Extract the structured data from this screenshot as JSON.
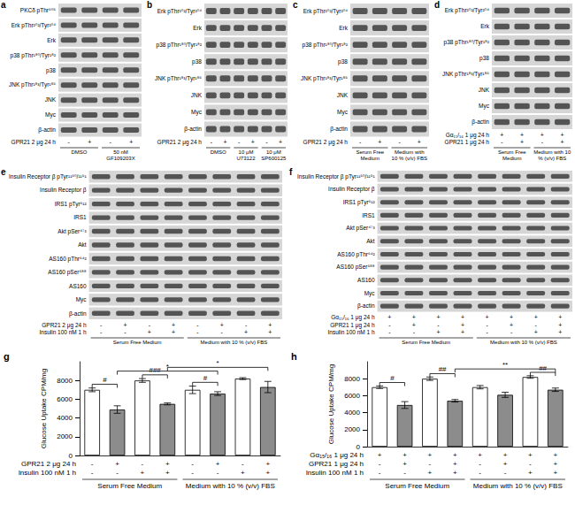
{
  "panels": [
    {
      "letter": "a",
      "rows": [
        "PKCδ pThr⁵⁰⁵",
        "Erk pThr²⁰²/Tyr²⁰⁴",
        "Erk",
        "p38 pThr¹⁸⁰/Tyr¹⁸²",
        "p38",
        "JNK pThr¹⁸³/Tyr¹⁸⁵",
        "JNK",
        "Myc",
        "β-actin"
      ],
      "conditions": [
        {
          "label": "GPR21 2 μg 24 h",
          "signs": [
            "-",
            "+",
            "-",
            "+"
          ]
        }
      ],
      "groups": [
        "DMSO",
        "50 nM GF109203X"
      ]
    },
    {
      "letter": "b",
      "rows": [
        "Erk pThr²⁰²/Tyr²⁰⁴",
        "Erk",
        "p38 pThr¹⁸⁰/Tyr¹⁸²",
        "p38",
        "JNK pThr¹⁸³/Tyr¹⁸⁵",
        "JNK",
        "Myc",
        "β-actin"
      ],
      "conditions": [
        {
          "label": "GPR21 2 μg 24 h",
          "signs": [
            "-",
            "+",
            "-",
            "+",
            "-",
            "+"
          ]
        }
      ],
      "groups": [
        "DMSO",
        "10 μM U73122",
        "10 μM SP600125"
      ]
    },
    {
      "letter": "c",
      "rows": [
        "Erk pThr²⁰²/Tyr²⁰⁴",
        "Erk",
        "p38 pThr¹⁸⁰/Tyr¹⁸²",
        "p38",
        "JNK pThr¹⁸³/Tyr¹⁸⁵",
        "JNK",
        "Myc",
        "β-actin"
      ],
      "conditions": [
        {
          "label": "GPR21 2 μg 24 h",
          "signs": [
            "-",
            "+",
            "-",
            "+"
          ]
        }
      ],
      "groups": [
        "Serum Free Medium",
        "Medium with 10 % (v/v) FBS"
      ]
    },
    {
      "letter": "d",
      "rows": [
        "Erk pThr²⁰²/Tyr²⁰⁴",
        "Erk",
        "p38 pThr¹⁸⁰/Tyr¹⁸²",
        "p38",
        "JNK pThr¹⁸³/Tyr¹⁸⁵",
        "JNK",
        "Myc",
        "β-actin"
      ],
      "conditions": [
        {
          "label": "Gα₁₅/₁₆ 1 μg 24 h",
          "signs": [
            "+",
            "+",
            "+",
            "+"
          ]
        },
        {
          "label": "GPR21 1 μg 24 h",
          "signs": [
            "-",
            "+",
            "-",
            "+"
          ]
        }
      ],
      "groups": [
        "Serum Free Medium",
        "Medium with 10 % (v/v) FBS"
      ]
    },
    {
      "letter": "e",
      "rows": [
        "Insulin Receptor β pTyr¹¹⁵⁰/¹¹⁵¹",
        "Insulin Receptor β",
        "IRS1 pTyr⁶¹²",
        "IRS1",
        "Akt pSer⁴⁷³",
        "Akt",
        "AS160 pThr⁶⁴²",
        "AS160 pSer⁵⁸⁸",
        "AS160",
        "Myc",
        "β-actin"
      ],
      "conditions": [
        {
          "label": "GPR21 2 μg 24 h",
          "signs": [
            "-",
            "+",
            "-",
            "+",
            "-",
            "+",
            "-",
            "+"
          ]
        },
        {
          "label": "Insulin 100 nM 1 h",
          "signs": [
            "-",
            "-",
            "+",
            "+",
            "-",
            "-",
            "+",
            "+"
          ]
        }
      ],
      "groups": [
        "Serum Free Medium",
        "Medium with 10 % (v/v) FBS"
      ]
    },
    {
      "letter": "f",
      "rows": [
        "Insulin Receptor β pTyr¹¹⁵⁰/¹¹⁵¹",
        "Insulin Receptor β",
        "IRS1 pTyr⁶¹²",
        "IRS1",
        "Akt pSer⁴⁷³",
        "Akt",
        "AS160 pThr⁶⁴²",
        "AS160 pSer⁵⁸⁸",
        "AS160",
        "Myc",
        "β-actin"
      ],
      "conditions": [
        {
          "label": "Gα₁₅/₁₆ 1 μg 24 h",
          "signs": [
            "+",
            "+",
            "+",
            "+",
            "+",
            "+",
            "+",
            "+"
          ]
        },
        {
          "label": "GPR21 1 μg 24 h",
          "signs": [
            "-",
            "+",
            "-",
            "+",
            "-",
            "+",
            "-",
            "+"
          ]
        },
        {
          "label": "Insulin 100 nM 1 h",
          "signs": [
            "-",
            "-",
            "+",
            "+",
            "-",
            "-",
            "+",
            "+"
          ]
        }
      ],
      "groups": [
        "Serum Free Medium",
        "Medium with 10 % (v/v) FBS"
      ]
    }
  ],
  "chart_data": [
    {
      "type": "bar",
      "letter": "g",
      "ylabel": "Glucose Uptake CPM/mg",
      "values": [
        7000,
        4900,
        8000,
        5500,
        7000,
        6600,
        8200,
        7300
      ],
      "errors": [
        200,
        400,
        200,
        100,
        400,
        200,
        100,
        600
      ],
      "colors": [
        "#ffffff",
        "#8c8c8c",
        "#ffffff",
        "#8c8c8c",
        "#ffffff",
        "#8c8c8c",
        "#ffffff",
        "#8c8c8c"
      ],
      "ylim": [
        0,
        10000
      ],
      "yticks": [
        0,
        2000,
        4000,
        6000,
        8000
      ],
      "grid": false,
      "conditions": [
        {
          "label": "GPR21 2 μg 24 h",
          "signs": [
            "-",
            "+",
            "-",
            "+",
            "-",
            "+",
            "-",
            "+"
          ]
        },
        {
          "label": "Insulin 100 nM 1 h",
          "signs": [
            "-",
            "-",
            "+",
            "+",
            "-",
            "-",
            "+",
            "+"
          ]
        }
      ],
      "groups": [
        "Serum Free Medium",
        "Medium with 10 % (v/v) FBS"
      ],
      "annotations": [
        {
          "from": 0,
          "to": 1,
          "text": "#"
        },
        {
          "from": 2,
          "to": 3,
          "text": "###"
        },
        {
          "from": 4,
          "to": 5,
          "text": "#"
        },
        {
          "from": 1,
          "to": 5,
          "text": "*"
        },
        {
          "from": 3,
          "to": 7,
          "text": "*"
        }
      ]
    },
    {
      "type": "bar",
      "letter": "h",
      "ylabel": "Glucose Uptake CPM/mg",
      "values": [
        7000,
        4900,
        8000,
        5400,
        7000,
        6100,
        8200,
        6700
      ],
      "errors": [
        150,
        400,
        200,
        150,
        200,
        300,
        150,
        200
      ],
      "colors": [
        "#ffffff",
        "#8c8c8c",
        "#ffffff",
        "#8c8c8c",
        "#ffffff",
        "#8c8c8c",
        "#ffffff",
        "#8c8c8c"
      ],
      "ylim": [
        0,
        10000
      ],
      "yticks": [
        0,
        2000,
        4000,
        6000,
        8000
      ],
      "grid": false,
      "conditions": [
        {
          "label": "Gα₁₅/₁₆ 1 μg 24 h",
          "signs": [
            "+",
            "+",
            "+",
            "+",
            "+",
            "+",
            "+",
            "+"
          ]
        },
        {
          "label": "GPR21 1 μg 24 h",
          "signs": [
            "-",
            "+",
            "-",
            "+",
            "-",
            "+",
            "-",
            "+"
          ]
        },
        {
          "label": "Insulin 100 nM 1 h",
          "signs": [
            "-",
            "-",
            "+",
            "+",
            "-",
            "-",
            "+",
            "+"
          ]
        }
      ],
      "groups": [
        "Serum Free Medium",
        "Medium with 10 % (v/v) FBS"
      ],
      "annotations": [
        {
          "from": 0,
          "to": 1,
          "text": "#"
        },
        {
          "from": 2,
          "to": 3,
          "text": "##"
        },
        {
          "from": 6,
          "to": 7,
          "text": "##"
        },
        {
          "from": 3,
          "to": 7,
          "text": "**"
        }
      ]
    }
  ]
}
